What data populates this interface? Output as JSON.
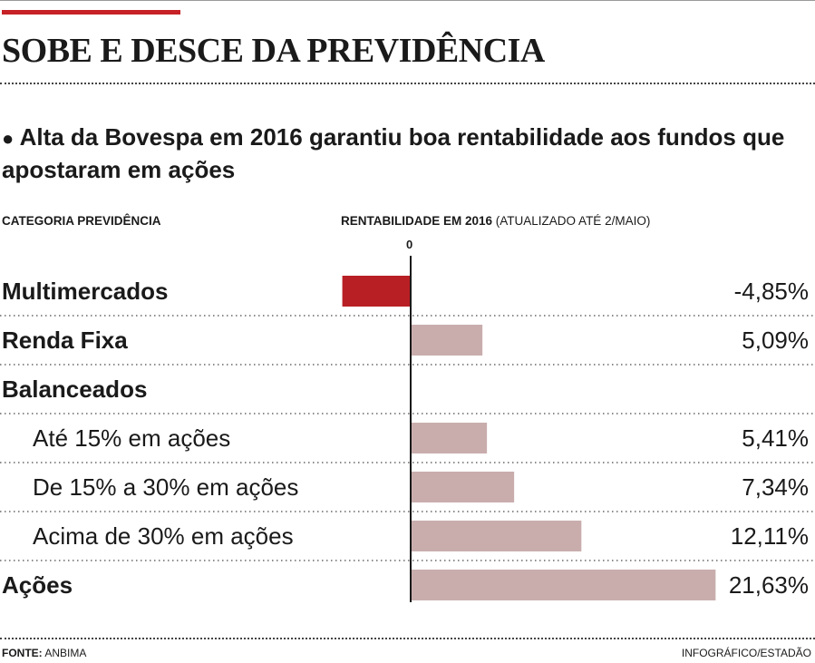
{
  "header": {
    "title": "SOBE E DESCE DA PREVIDÊNCIA",
    "subtitle": "Alta da Bovespa em 2016 garantiu boa rentabilidade aos fundos que apostaram em ações"
  },
  "columns": {
    "category": "CATEGORIA PREVIDÊNCIA",
    "value": "RENTABILIDADE EM 2016",
    "value_note": "(ATUALIZADO ATÉ 2/MAIO)"
  },
  "chart_data": {
    "type": "bar",
    "orientation": "horizontal",
    "zero_label": "0",
    "grid": false,
    "rows": [
      {
        "label": "Multimercados",
        "value": -4.85,
        "display": "-4,85%",
        "level": 0
      },
      {
        "label": "Renda Fixa",
        "value": 5.09,
        "display": "5,09%",
        "level": 0
      },
      {
        "label": "Balanceados",
        "value": null,
        "display": "",
        "level": 0
      },
      {
        "label": "Até 15% em ações",
        "value": 5.41,
        "display": "5,41%",
        "level": 1
      },
      {
        "label": "De 15% a 30% em ações",
        "value": 7.34,
        "display": "7,34%",
        "level": 1
      },
      {
        "label": "Acima de 30% em ações",
        "value": 12.11,
        "display": "12,11%",
        "level": 1
      },
      {
        "label": "Ações",
        "value": 21.63,
        "display": "21,63%",
        "level": 0
      }
    ],
    "colors": {
      "negative": "#b81f24",
      "positive": "#c9adad"
    }
  },
  "footer": {
    "source_label": "FONTE:",
    "source": "ANBIMA",
    "credit": "INFOGRÁFICO/ESTADÃO"
  }
}
